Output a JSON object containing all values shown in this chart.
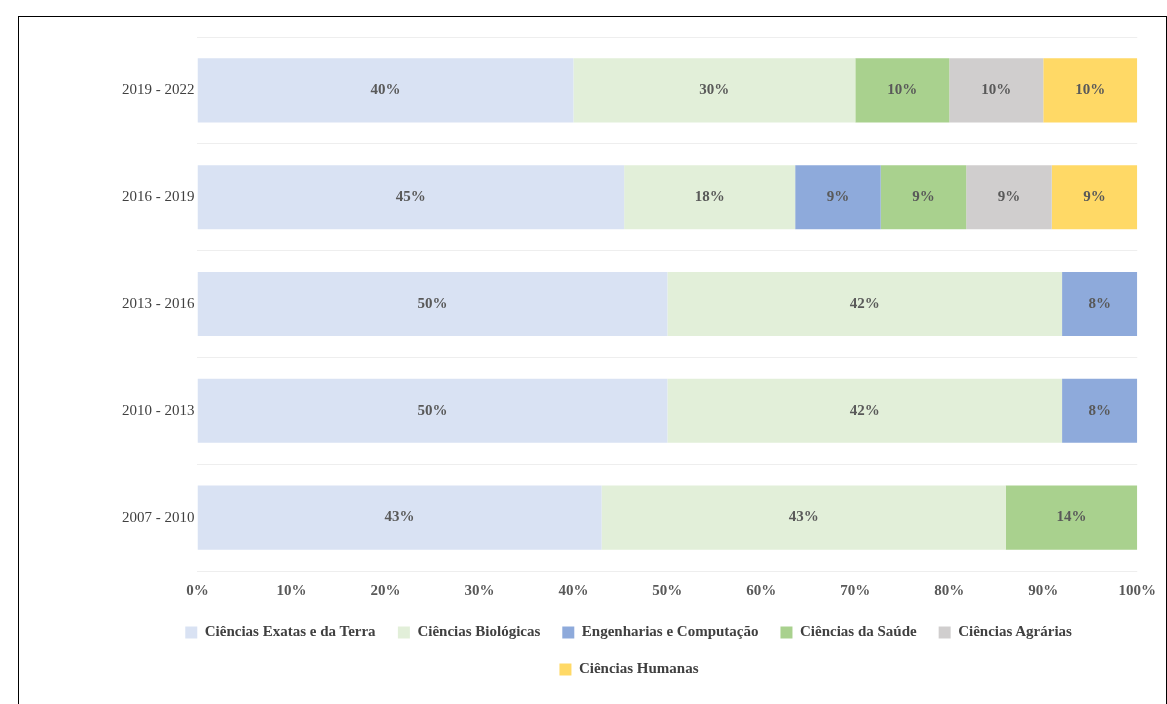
{
  "chart_data": {
    "type": "bar",
    "orientation": "horizontal",
    "stacked": true,
    "categories": [
      "2019 - 2022",
      "2016 - 2019",
      "2013 - 2016",
      "2010 - 2013",
      "2007 - 2010"
    ],
    "series": [
      {
        "name": "Ciências Exatas e da Terra",
        "color": "#d9e2f3",
        "values": [
          40,
          45.4,
          50,
          50,
          43
        ],
        "value_labels": [
          "40%",
          "45%",
          "50%",
          "50%",
          "43%"
        ]
      },
      {
        "name": "Ciências Biológicas",
        "color": "#e2efd9",
        "values": [
          30,
          18.2,
          42,
          42,
          43
        ],
        "value_labels": [
          "30%",
          "18%",
          "42%",
          "42%",
          "43%"
        ]
      },
      {
        "name": "Engenharias e Computação",
        "color": "#8eaadb",
        "values": [
          null,
          9.1,
          8,
          8,
          null
        ],
        "value_labels": [
          null,
          "9%",
          "8%",
          "8%",
          null
        ]
      },
      {
        "name": "Ciências da Saúde",
        "color": "#a9d18e",
        "values": [
          10,
          9.1,
          null,
          null,
          14
        ],
        "value_labels": [
          "10%",
          "9%",
          null,
          null,
          "14%"
        ]
      },
      {
        "name": "Ciências Agrárias",
        "color": "#d0cece",
        "values": [
          10,
          9.1,
          null,
          null,
          null
        ],
        "value_labels": [
          "10%",
          "9%",
          null,
          null,
          null
        ]
      },
      {
        "name": "Ciências Humanas",
        "color": "#ffd966",
        "values": [
          10,
          9.1,
          null,
          null,
          null
        ],
        "value_labels": [
          "10%",
          "9%",
          null,
          null,
          null
        ]
      }
    ],
    "xlim": [
      0,
      100
    ],
    "xticks": [
      {
        "value": 0,
        "label": "0%"
      },
      {
        "value": 10,
        "label": "10%"
      },
      {
        "value": 20,
        "label": "20%"
      },
      {
        "value": 30,
        "label": "30%"
      },
      {
        "value": 40,
        "label": "40%"
      },
      {
        "value": 50,
        "label": "50%"
      },
      {
        "value": 60,
        "label": "60%"
      },
      {
        "value": 70,
        "label": "70%"
      },
      {
        "value": 80,
        "label": "80%"
      },
      {
        "value": 90,
        "label": "90%"
      },
      {
        "value": 100,
        "label": "100%"
      }
    ],
    "grid": "y",
    "legend": "bottom"
  }
}
